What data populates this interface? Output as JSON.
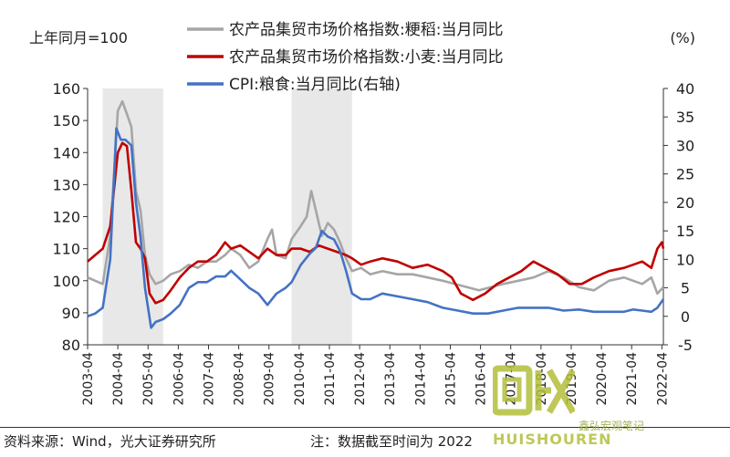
{
  "chart_data": {
    "type": "line",
    "left_axis_unit": "上年同月=100",
    "right_axis_unit": "(%)",
    "y_left": {
      "min": 80,
      "max": 160,
      "ticks": [
        80,
        90,
        100,
        110,
        120,
        130,
        140,
        150,
        160
      ]
    },
    "y_right": {
      "min": -5,
      "max": 40,
      "ticks": [
        -5,
        0,
        5,
        10,
        15,
        20,
        25,
        30,
        35,
        40
      ]
    },
    "x_range": [
      2003.25,
      2022.3
    ],
    "x_tick_labels": [
      "2003-04",
      "2004-04",
      "2005-04",
      "2006-04",
      "2007-04",
      "2008-04",
      "2009-04",
      "2010-04",
      "2011-04",
      "2012-04",
      "2013-04",
      "2014-04",
      "2015-04",
      "2016-04",
      "2017-04",
      "2018-04",
      "2019-04",
      "2020-04",
      "2021-04",
      "2022-04"
    ],
    "shaded_periods": [
      [
        2003.75,
        2005.75
      ],
      [
        2010.0,
        2012.0
      ]
    ],
    "series": [
      {
        "name": "农产品集贸市场价格指数:粳稻:当月同比",
        "axis": "left",
        "color": "#a6a6a6",
        "x": [
          2003.25,
          2003.5,
          2003.75,
          2004.0,
          2004.25,
          2004.4,
          2004.55,
          2004.7,
          2004.85,
          2005.0,
          2005.15,
          2005.3,
          2005.5,
          2005.75,
          2006.0,
          2006.3,
          2006.6,
          2006.9,
          2007.2,
          2007.5,
          2007.8,
          2008.0,
          2008.3,
          2008.6,
          2008.9,
          2009.2,
          2009.35,
          2009.5,
          2009.8,
          2010.0,
          2010.3,
          2010.5,
          2010.65,
          2010.8,
          2011.0,
          2011.2,
          2011.4,
          2011.6,
          2011.8,
          2012.0,
          2012.3,
          2012.6,
          2013.0,
          2013.5,
          2014.0,
          2014.5,
          2015.0,
          2015.4,
          2015.8,
          2016.2,
          2016.6,
          2017.0,
          2017.5,
          2018.0,
          2018.5,
          2019.0,
          2019.5,
          2020.0,
          2020.5,
          2021.0,
          2021.3,
          2021.6,
          2021.9,
          2022.1,
          2022.3
        ],
        "values": [
          101,
          100,
          99,
          114,
          153,
          156,
          152,
          148,
          128,
          122,
          108,
          102,
          99,
          100,
          102,
          103,
          105,
          104,
          106,
          106,
          108,
          110,
          108,
          104,
          106,
          113,
          116,
          108,
          107,
          113,
          117,
          120,
          128,
          122,
          114,
          118,
          116,
          112,
          107,
          103,
          104,
          102,
          103,
          102,
          102,
          101,
          100,
          99,
          98,
          97,
          98,
          99,
          100,
          101,
          103,
          101,
          98,
          97,
          100,
          101,
          100,
          99,
          101,
          96,
          98
        ]
      },
      {
        "name": "农产品集贸市场价格指数:小麦:当月同比",
        "axis": "left",
        "color": "#c00000",
        "x": [
          2003.25,
          2003.5,
          2003.75,
          2004.0,
          2004.25,
          2004.4,
          2004.55,
          2004.7,
          2004.85,
          2005.0,
          2005.15,
          2005.3,
          2005.5,
          2005.75,
          2006.0,
          2006.3,
          2006.6,
          2006.9,
          2007.2,
          2007.5,
          2007.8,
          2008.0,
          2008.3,
          2008.6,
          2008.9,
          2009.2,
          2009.5,
          2009.8,
          2010.0,
          2010.3,
          2010.6,
          2010.9,
          2011.2,
          2011.5,
          2011.8,
          2012.0,
          2012.3,
          2012.6,
          2013.0,
          2013.5,
          2014.0,
          2014.5,
          2015.0,
          2015.3,
          2015.6,
          2016.0,
          2016.4,
          2016.8,
          2017.2,
          2017.6,
          2018.0,
          2018.4,
          2018.8,
          2019.2,
          2019.6,
          2020.0,
          2020.5,
          2021.0,
          2021.3,
          2021.6,
          2021.9,
          2022.1,
          2022.25,
          2022.3
        ],
        "values": [
          106,
          108,
          110,
          117,
          140,
          143,
          142,
          128,
          112,
          110,
          107,
          96,
          93,
          94,
          97,
          101,
          104,
          106,
          106,
          108,
          112,
          110,
          111,
          109,
          107,
          110,
          108,
          108,
          110,
          110,
          109,
          111,
          110,
          109,
          108,
          107,
          105,
          106,
          107,
          106,
          104,
          105,
          103,
          101,
          96,
          94,
          96,
          99,
          101,
          103,
          106,
          104,
          102,
          99,
          99,
          101,
          103,
          104,
          105,
          106,
          104,
          110,
          112,
          110
        ]
      },
      {
        "name": "CPI:粮食:当月同比(右轴)",
        "axis": "right",
        "color": "#4472c4",
        "x": [
          2003.25,
          2003.5,
          2003.75,
          2004.0,
          2004.2,
          2004.35,
          2004.5,
          2004.7,
          2004.85,
          2005.0,
          2005.15,
          2005.35,
          2005.5,
          2005.75,
          2006.0,
          2006.3,
          2006.6,
          2006.9,
          2007.2,
          2007.5,
          2007.8,
          2008.0,
          2008.3,
          2008.6,
          2008.9,
          2009.2,
          2009.5,
          2009.8,
          2010.0,
          2010.3,
          2010.6,
          2010.8,
          2011.0,
          2011.2,
          2011.4,
          2011.6,
          2011.8,
          2012.0,
          2012.3,
          2012.6,
          2013.0,
          2013.5,
          2014.0,
          2014.5,
          2015.0,
          2015.5,
          2016.0,
          2016.5,
          2017.0,
          2017.5,
          2018.0,
          2018.5,
          2019.0,
          2019.5,
          2020.0,
          2020.5,
          2021.0,
          2021.3,
          2021.6,
          2021.9,
          2022.1,
          2022.3
        ],
        "values": [
          0,
          0.5,
          1.5,
          10,
          33,
          31,
          31,
          30,
          20,
          14,
          5,
          -2,
          -1,
          -0.5,
          0.5,
          2,
          5,
          6,
          6,
          7,
          7,
          8,
          6.5,
          5,
          4,
          2,
          4,
          5,
          6,
          9,
          11,
          12,
          15,
          14,
          13.5,
          11.5,
          8,
          4,
          3,
          3,
          4,
          3.5,
          3,
          2.5,
          1.5,
          1,
          0.5,
          0.5,
          1,
          1.5,
          1.5,
          1.5,
          1,
          1.2,
          0.8,
          0.8,
          0.8,
          1.2,
          1,
          0.8,
          1.5,
          3
        ]
      }
    ]
  },
  "footer": {
    "source": "资料来源：Wind，光大证券研究所",
    "note": "注：数据截至时间为 2022"
  },
  "watermark": {
    "brand": "HUISHOUREN",
    "text": "鑫弘宏观笔记"
  }
}
